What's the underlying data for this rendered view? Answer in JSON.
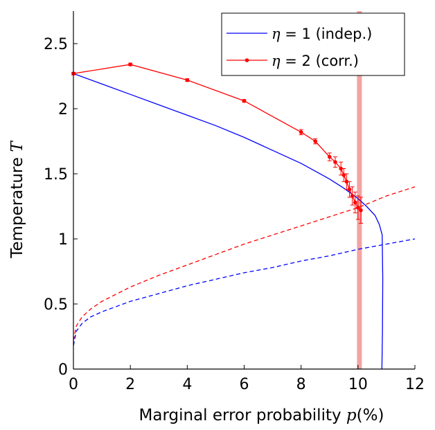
{
  "chart_data": {
    "type": "line",
    "xlabel": "Marginal error probability p(%)",
    "xlabel_parts": {
      "pre": "Marginal error probability ",
      "var": "p",
      "post": "(%)"
    },
    "ylabel": "Temperature T",
    "ylabel_parts": {
      "pre": "Temperature ",
      "var": "T"
    },
    "xlim": [
      0,
      12
    ],
    "ylim": [
      0,
      2.75
    ],
    "xticks": [
      0,
      2,
      4,
      6,
      8,
      10,
      12
    ],
    "xtick_labels": [
      "0",
      "2",
      "4",
      "6",
      "8",
      "10",
      "12"
    ],
    "yticks": [
      0,
      0.5,
      1,
      1.5,
      2,
      2.5
    ],
    "ytick_labels": [
      "0",
      "0.5",
      "1",
      "1.5",
      "2",
      "2.5"
    ],
    "grid": false,
    "legend_position": "top-right",
    "vertical_band": {
      "x": 10.05,
      "color": "#f4a3a3"
    },
    "series": [
      {
        "name": "η = 1 (indep.)",
        "legend_parts": {
          "var": "η",
          "eq": " = 1 ",
          "rest": "(indep.)"
        },
        "color": "#0000ff",
        "style": "solid",
        "x": [
          0,
          1,
          2,
          3,
          4,
          5,
          6,
          7,
          8,
          9,
          9.5,
          10,
          10.3,
          10.6,
          10.75,
          10.85,
          10.87,
          10.86,
          10.84
        ],
        "y": [
          2.27,
          2.19,
          2.11,
          2.03,
          1.95,
          1.87,
          1.78,
          1.68,
          1.58,
          1.46,
          1.39,
          1.31,
          1.25,
          1.18,
          1.11,
          1.03,
          0.7,
          0.3,
          0.0
        ]
      },
      {
        "name": "η = 2 (corr.)",
        "legend_parts": {
          "var": "η",
          "eq": " = 2 ",
          "rest": "(corr.)"
        },
        "color": "#ff0000",
        "style": "solid",
        "markers": true,
        "x": [
          0,
          2,
          4,
          6,
          8,
          8.5,
          9,
          9.2,
          9.4,
          9.5,
          9.6,
          9.7,
          9.8,
          9.9,
          10,
          10.1
        ],
        "y": [
          2.27,
          2.34,
          2.22,
          2.06,
          1.82,
          1.75,
          1.63,
          1.59,
          1.54,
          1.49,
          1.44,
          1.38,
          1.33,
          1.28,
          1.24,
          1.22
        ],
        "error": [
          0.01,
          0.01,
          0.01,
          0.01,
          0.02,
          0.02,
          0.03,
          0.04,
          0.05,
          0.05,
          0.06,
          0.06,
          0.07,
          0.08,
          0.09,
          0.1
        ]
      },
      {
        "name": "blue dashed (Nishimori line η=1)",
        "color": "#0000ff",
        "style": "dashed",
        "x": [
          0,
          0.1,
          0.3,
          0.6,
          1,
          2,
          3,
          4,
          5,
          6,
          7,
          8,
          9,
          10,
          11,
          12
        ],
        "y": [
          0.18,
          0.29,
          0.35,
          0.4,
          0.44,
          0.52,
          0.58,
          0.64,
          0.69,
          0.74,
          0.78,
          0.83,
          0.87,
          0.92,
          0.96,
          1.0
        ]
      },
      {
        "name": "red dashed (Nishimori line η=2)",
        "color": "#ff0000",
        "style": "dashed",
        "x": [
          0,
          0.1,
          0.3,
          0.6,
          1,
          2,
          3,
          4,
          5,
          6,
          7,
          8,
          9,
          10,
          11,
          12
        ],
        "y": [
          0.22,
          0.33,
          0.4,
          0.46,
          0.52,
          0.63,
          0.72,
          0.8,
          0.88,
          0.96,
          1.03,
          1.1,
          1.17,
          1.24,
          1.33,
          1.4
        ]
      }
    ]
  }
}
